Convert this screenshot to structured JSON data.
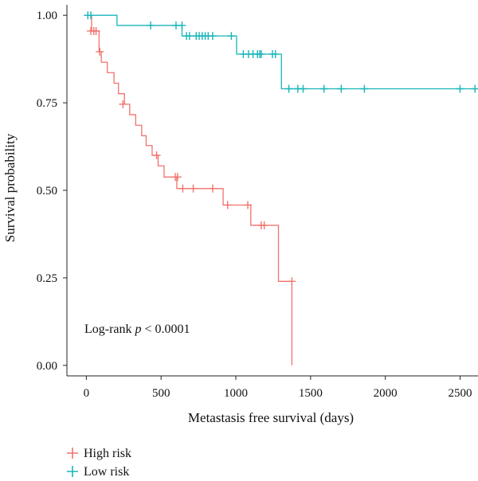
{
  "chart_data": {
    "type": "line",
    "subtype": "kaplan-meier",
    "xlabel": "Metastasis free survival (days)",
    "ylabel": "Survival probability",
    "xlim": [
      -130,
      2620
    ],
    "ylim": [
      -0.03,
      1.03
    ],
    "x_ticks": [
      0,
      500,
      1000,
      1500,
      2000,
      2500
    ],
    "x_tick_labels": [
      "0",
      "500",
      "1000",
      "1500",
      "2000",
      "2500"
    ],
    "y_ticks": [
      0.0,
      0.25,
      0.5,
      0.75,
      1.0
    ],
    "y_tick_labels": [
      "0.00",
      "0.25",
      "0.50",
      "0.75",
      "1.00"
    ],
    "grid": false,
    "legend_position": "bottom-left",
    "annotation": {
      "prefix": "Log-rank ",
      "italic": "p",
      "suffix": " < 0.0001"
    },
    "series": [
      {
        "name": "High risk",
        "color": "#F0736E",
        "steps": [
          [
            0,
            1.0
          ],
          [
            35,
            0.955
          ],
          [
            85,
            0.896
          ],
          [
            100,
            0.866
          ],
          [
            140,
            0.836
          ],
          [
            185,
            0.806
          ],
          [
            215,
            0.776
          ],
          [
            255,
            0.746
          ],
          [
            290,
            0.716
          ],
          [
            330,
            0.686
          ],
          [
            370,
            0.656
          ],
          [
            400,
            0.628
          ],
          [
            440,
            0.6
          ],
          [
            480,
            0.57
          ],
          [
            520,
            0.538
          ],
          [
            605,
            0.505
          ],
          [
            915,
            0.458
          ],
          [
            1100,
            0.4
          ],
          [
            1285,
            0.24
          ],
          [
            1375,
            0.0
          ]
        ],
        "censored": [
          [
            30,
            0.955
          ],
          [
            50,
            0.955
          ],
          [
            65,
            0.955
          ],
          [
            90,
            0.896
          ],
          [
            245,
            0.746
          ],
          [
            470,
            0.6
          ],
          [
            595,
            0.538
          ],
          [
            610,
            0.538
          ],
          [
            645,
            0.505
          ],
          [
            715,
            0.505
          ],
          [
            845,
            0.505
          ],
          [
            945,
            0.458
          ],
          [
            1080,
            0.458
          ],
          [
            1170,
            0.4
          ],
          [
            1190,
            0.4
          ],
          [
            1375,
            0.24
          ]
        ]
      },
      {
        "name": "Low risk",
        "color": "#18B5B9",
        "steps": [
          [
            0,
            1.0
          ],
          [
            205,
            0.971
          ],
          [
            640,
            0.941
          ],
          [
            1005,
            0.889
          ],
          [
            1305,
            0.79
          ]
        ],
        "censored": [
          [
            10,
            1.0
          ],
          [
            30,
            1.0
          ],
          [
            430,
            0.971
          ],
          [
            600,
            0.971
          ],
          [
            640,
            0.971
          ],
          [
            670,
            0.941
          ],
          [
            690,
            0.941
          ],
          [
            735,
            0.941
          ],
          [
            755,
            0.941
          ],
          [
            775,
            0.941
          ],
          [
            795,
            0.941
          ],
          [
            815,
            0.941
          ],
          [
            845,
            0.941
          ],
          [
            970,
            0.941
          ],
          [
            1050,
            0.889
          ],
          [
            1085,
            0.889
          ],
          [
            1115,
            0.889
          ],
          [
            1145,
            0.889
          ],
          [
            1160,
            0.889
          ],
          [
            1170,
            0.889
          ],
          [
            1245,
            0.889
          ],
          [
            1265,
            0.889
          ],
          [
            1355,
            0.79
          ],
          [
            1415,
            0.79
          ],
          [
            1450,
            0.79
          ],
          [
            1590,
            0.79
          ],
          [
            1705,
            0.79
          ],
          [
            1860,
            0.79
          ],
          [
            2500,
            0.79
          ],
          [
            2600,
            0.79
          ]
        ]
      }
    ]
  }
}
